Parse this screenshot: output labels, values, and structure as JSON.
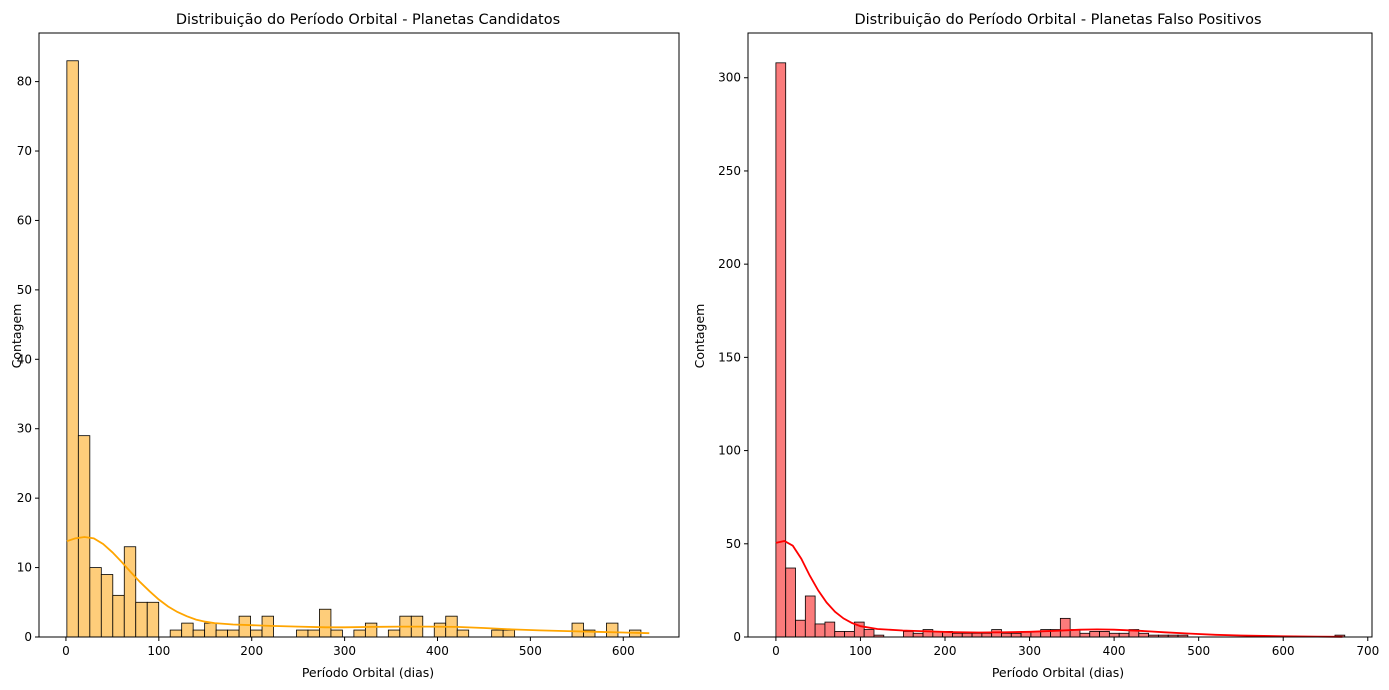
{
  "chart_data": [
    {
      "type": "bar",
      "subtype": "histogram-with-kde",
      "title": "Distribuição do Período Orbital - Planetas Candidatos",
      "xlabel": "Período Orbital (dias)",
      "ylabel": "Contagem",
      "xlim": [
        -29,
        660
      ],
      "ylim": [
        0,
        87
      ],
      "xticks": [
        0,
        100,
        200,
        300,
        400,
        500,
        600
      ],
      "yticks": [
        0,
        10,
        20,
        30,
        40,
        50,
        60,
        70,
        80
      ],
      "bin_start": 1,
      "bin_width": 12.36,
      "values": [
        83,
        29,
        10,
        9,
        6,
        13,
        5,
        5,
        0,
        1,
        2,
        1,
        2,
        1,
        1,
        3,
        1,
        3,
        0,
        0,
        1,
        1,
        4,
        1,
        0,
        1,
        2,
        0,
        1,
        3,
        3,
        0,
        2,
        3,
        1,
        0,
        0,
        1,
        1,
        0,
        0,
        0,
        0,
        0,
        2,
        1,
        0,
        2,
        0,
        1
      ],
      "kde": [
        [
          1,
          13.8
        ],
        [
          10,
          14.2
        ],
        [
          20,
          14.4
        ],
        [
          30,
          14.2
        ],
        [
          40,
          13.4
        ],
        [
          50,
          12.2
        ],
        [
          60,
          10.8
        ],
        [
          70,
          9.3
        ],
        [
          80,
          7.9
        ],
        [
          90,
          6.6
        ],
        [
          100,
          5.4
        ],
        [
          110,
          4.4
        ],
        [
          120,
          3.6
        ],
        [
          130,
          3.0
        ],
        [
          140,
          2.5
        ],
        [
          150,
          2.2
        ],
        [
          160,
          2.0
        ],
        [
          180,
          1.8
        ],
        [
          200,
          1.7
        ],
        [
          220,
          1.6
        ],
        [
          250,
          1.5
        ],
        [
          280,
          1.4
        ],
        [
          300,
          1.4
        ],
        [
          330,
          1.45
        ],
        [
          360,
          1.5
        ],
        [
          390,
          1.5
        ],
        [
          420,
          1.45
        ],
        [
          450,
          1.3
        ],
        [
          480,
          1.1
        ],
        [
          510,
          0.95
        ],
        [
          540,
          0.85
        ],
        [
          570,
          0.75
        ],
        [
          600,
          0.65
        ],
        [
          628,
          0.55
        ]
      ],
      "colors": {
        "bar": "#fecd7a",
        "line": "#ffa500"
      },
      "grid": false
    },
    {
      "type": "bar",
      "subtype": "histogram-with-kde",
      "title": "Distribuição do Período Orbital - Planetas Falso Positivos",
      "xlabel": "Período Orbital (dias)",
      "ylabel": "Contagem",
      "xlim": [
        -33,
        705
      ],
      "ylim": [
        0,
        324
      ],
      "xticks": [
        0,
        100,
        200,
        300,
        400,
        500,
        600,
        700
      ],
      "yticks": [
        0,
        50,
        100,
        150,
        200,
        250,
        300
      ],
      "bin_start": 0,
      "bin_width": 11.6,
      "values": [
        308,
        37,
        9,
        22,
        7,
        8,
        3,
        3,
        8,
        4,
        1,
        0,
        0,
        3,
        2,
        4,
        3,
        3,
        2,
        2,
        2,
        2,
        4,
        2,
        2,
        3,
        3,
        4,
        4,
        10,
        4,
        2,
        3,
        3,
        2,
        2,
        4,
        2,
        1,
        1,
        1,
        1,
        0,
        0,
        0,
        0,
        0,
        0,
        0,
        0,
        0,
        0,
        0,
        0,
        0,
        0,
        0,
        1
      ],
      "kde": [
        [
          0,
          50.5
        ],
        [
          10,
          51.5
        ],
        [
          20,
          49
        ],
        [
          30,
          42
        ],
        [
          40,
          33
        ],
        [
          50,
          25
        ],
        [
          60,
          18.5
        ],
        [
          70,
          13.5
        ],
        [
          80,
          10
        ],
        [
          90,
          7.5
        ],
        [
          100,
          5.8
        ],
        [
          120,
          4.3
        ],
        [
          150,
          3.5
        ],
        [
          180,
          3.0
        ],
        [
          210,
          2.6
        ],
        [
          240,
          2.4
        ],
        [
          270,
          2.5
        ],
        [
          300,
          2.8
        ],
        [
          330,
          3.3
        ],
        [
          360,
          3.9
        ],
        [
          380,
          4.1
        ],
        [
          400,
          3.9
        ],
        [
          430,
          3.3
        ],
        [
          460,
          2.5
        ],
        [
          490,
          1.8
        ],
        [
          520,
          1.2
        ],
        [
          550,
          0.8
        ],
        [
          600,
          0.4
        ],
        [
          640,
          0.2
        ],
        [
          670,
          0.1
        ]
      ],
      "colors": {
        "bar": "#fb7b7b",
        "line": "#ff0000"
      },
      "grid": false
    }
  ]
}
